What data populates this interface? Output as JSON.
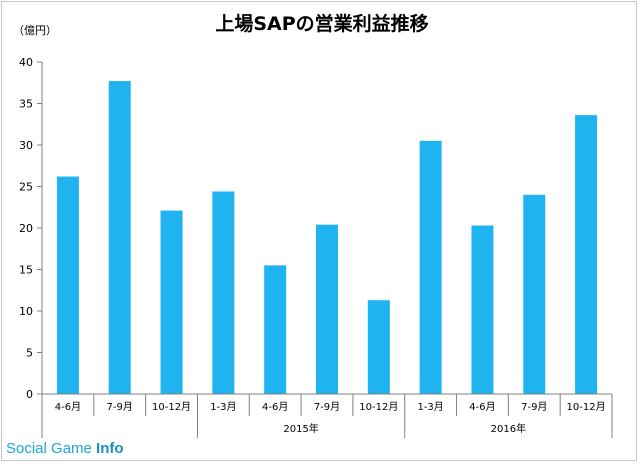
{
  "chart_data": {
    "type": "bar",
    "title": "上場SAPの営業利益推移",
    "unit_label": "（億円）",
    "ylim": [
      0,
      40
    ],
    "yticks": [
      "0",
      "5",
      "10",
      "15",
      "20",
      "25",
      "30",
      "35",
      "40"
    ],
    "categories": [
      "4-6月",
      "7-9月",
      "10-12月",
      "1-3月",
      "4-6月",
      "7-9月",
      "10-12月",
      "1-3月",
      "4-6月",
      "7-9月",
      "10-12月"
    ],
    "values": [
      26.2,
      37.7,
      22.1,
      24.4,
      15.5,
      20.4,
      11.3,
      30.5,
      20.3,
      24.0,
      33.6
    ],
    "groups": [
      {
        "label": "2015年",
        "start": 3,
        "end": 6
      },
      {
        "label": "2016年",
        "start": 7,
        "end": 10
      }
    ],
    "bar_color": "#1fb3ef",
    "grid": false
  },
  "watermark": {
    "part1": "Social Game ",
    "part2": "Info"
  }
}
